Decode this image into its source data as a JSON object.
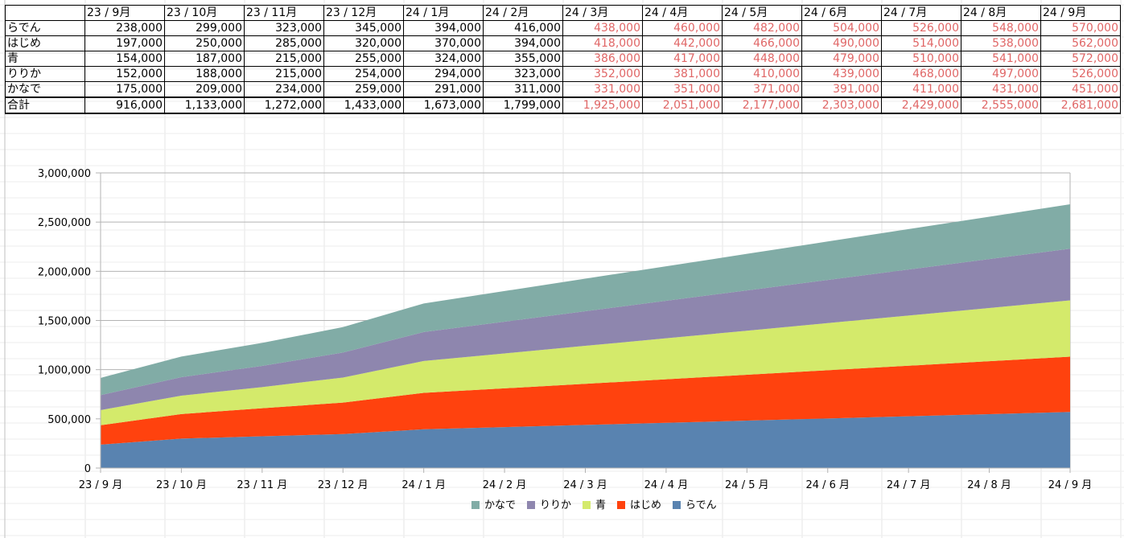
{
  "table": {
    "months": [
      "23 / 9月",
      "23 / 10月",
      "23 / 11月",
      "23 / 12月",
      "24 / 1月",
      "24 / 2月",
      "24 / 3月",
      "24 / 4月",
      "24 / 5月",
      "24 / 6月",
      "24 / 7月",
      "24 / 8月",
      "24 / 9月"
    ],
    "rows": [
      {
        "label": "らでん",
        "values": [
          "238,000",
          "299,000",
          "323,000",
          "345,000",
          "394,000",
          "416,000",
          "438,000",
          "460,000",
          "482,000",
          "504,000",
          "526,000",
          "548,000",
          "570,000"
        ]
      },
      {
        "label": "はじめ",
        "values": [
          "197,000",
          "250,000",
          "285,000",
          "320,000",
          "370,000",
          "394,000",
          "418,000",
          "442,000",
          "466,000",
          "490,000",
          "514,000",
          "538,000",
          "562,000"
        ]
      },
      {
        "label": "青",
        "values": [
          "154,000",
          "187,000",
          "215,000",
          "255,000",
          "324,000",
          "355,000",
          "386,000",
          "417,000",
          "448,000",
          "479,000",
          "510,000",
          "541,000",
          "572,000"
        ]
      },
      {
        "label": "りりか",
        "values": [
          "152,000",
          "188,000",
          "215,000",
          "254,000",
          "294,000",
          "323,000",
          "352,000",
          "381,000",
          "410,000",
          "439,000",
          "468,000",
          "497,000",
          "526,000"
        ]
      },
      {
        "label": "かなで",
        "values": [
          "175,000",
          "209,000",
          "234,000",
          "259,000",
          "291,000",
          "311,000",
          "331,000",
          "351,000",
          "371,000",
          "391,000",
          "411,000",
          "431,000",
          "451,000"
        ]
      }
    ],
    "total": {
      "label": "合計",
      "values": [
        "916,000",
        "1,133,000",
        "1,272,000",
        "1,433,000",
        "1,673,000",
        "1,799,000",
        "1,925,000",
        "2,051,000",
        "2,177,000",
        "2,303,000",
        "2,429,000",
        "2,555,000",
        "2,681,000"
      ]
    },
    "projected_from_index": 6,
    "projected_color": "#e06666"
  },
  "chart_data": {
    "type": "area",
    "stacked": true,
    "categories": [
      "23 / 9 月",
      "23 / 10 月",
      "23 / 11 月",
      "23 / 12 月",
      "24 / 1 月",
      "24 / 2 月",
      "24 / 3 月",
      "24 / 4 月",
      "24 / 5 月",
      "24 / 6 月",
      "24 / 7 月",
      "24 / 8 月",
      "24 / 9 月"
    ],
    "series": [
      {
        "name": "らでん",
        "color": "#5983b0",
        "values": [
          238000,
          299000,
          323000,
          345000,
          394000,
          416000,
          438000,
          460000,
          482000,
          504000,
          526000,
          548000,
          570000
        ]
      },
      {
        "name": "はじめ",
        "color": "#ff420e",
        "values": [
          197000,
          250000,
          285000,
          320000,
          370000,
          394000,
          418000,
          442000,
          466000,
          490000,
          514000,
          538000,
          562000
        ]
      },
      {
        "name": "青",
        "color": "#d4ea6b",
        "values": [
          154000,
          187000,
          215000,
          255000,
          324000,
          355000,
          386000,
          417000,
          448000,
          479000,
          510000,
          541000,
          572000
        ]
      },
      {
        "name": "りりか",
        "color": "#8e86ae",
        "values": [
          152000,
          188000,
          215000,
          254000,
          294000,
          323000,
          352000,
          381000,
          410000,
          439000,
          468000,
          497000,
          526000
        ]
      },
      {
        "name": "かなで",
        "color": "#81aca6",
        "values": [
          175000,
          209000,
          234000,
          259000,
          291000,
          311000,
          331000,
          351000,
          371000,
          391000,
          411000,
          431000,
          451000
        ]
      }
    ],
    "ylim": [
      0,
      3000000
    ],
    "yticks": [
      0,
      500000,
      1000000,
      1500000,
      2000000,
      2500000,
      3000000
    ],
    "ytick_labels": [
      "0",
      "500,000",
      "1,000,000",
      "1,500,000",
      "2,000,000",
      "2,500,000",
      "3,000,000"
    ],
    "grid": true,
    "legend_position": "bottom",
    "legend_order": [
      "かなで",
      "りりか",
      "青",
      "はじめ",
      "らでん"
    ]
  }
}
